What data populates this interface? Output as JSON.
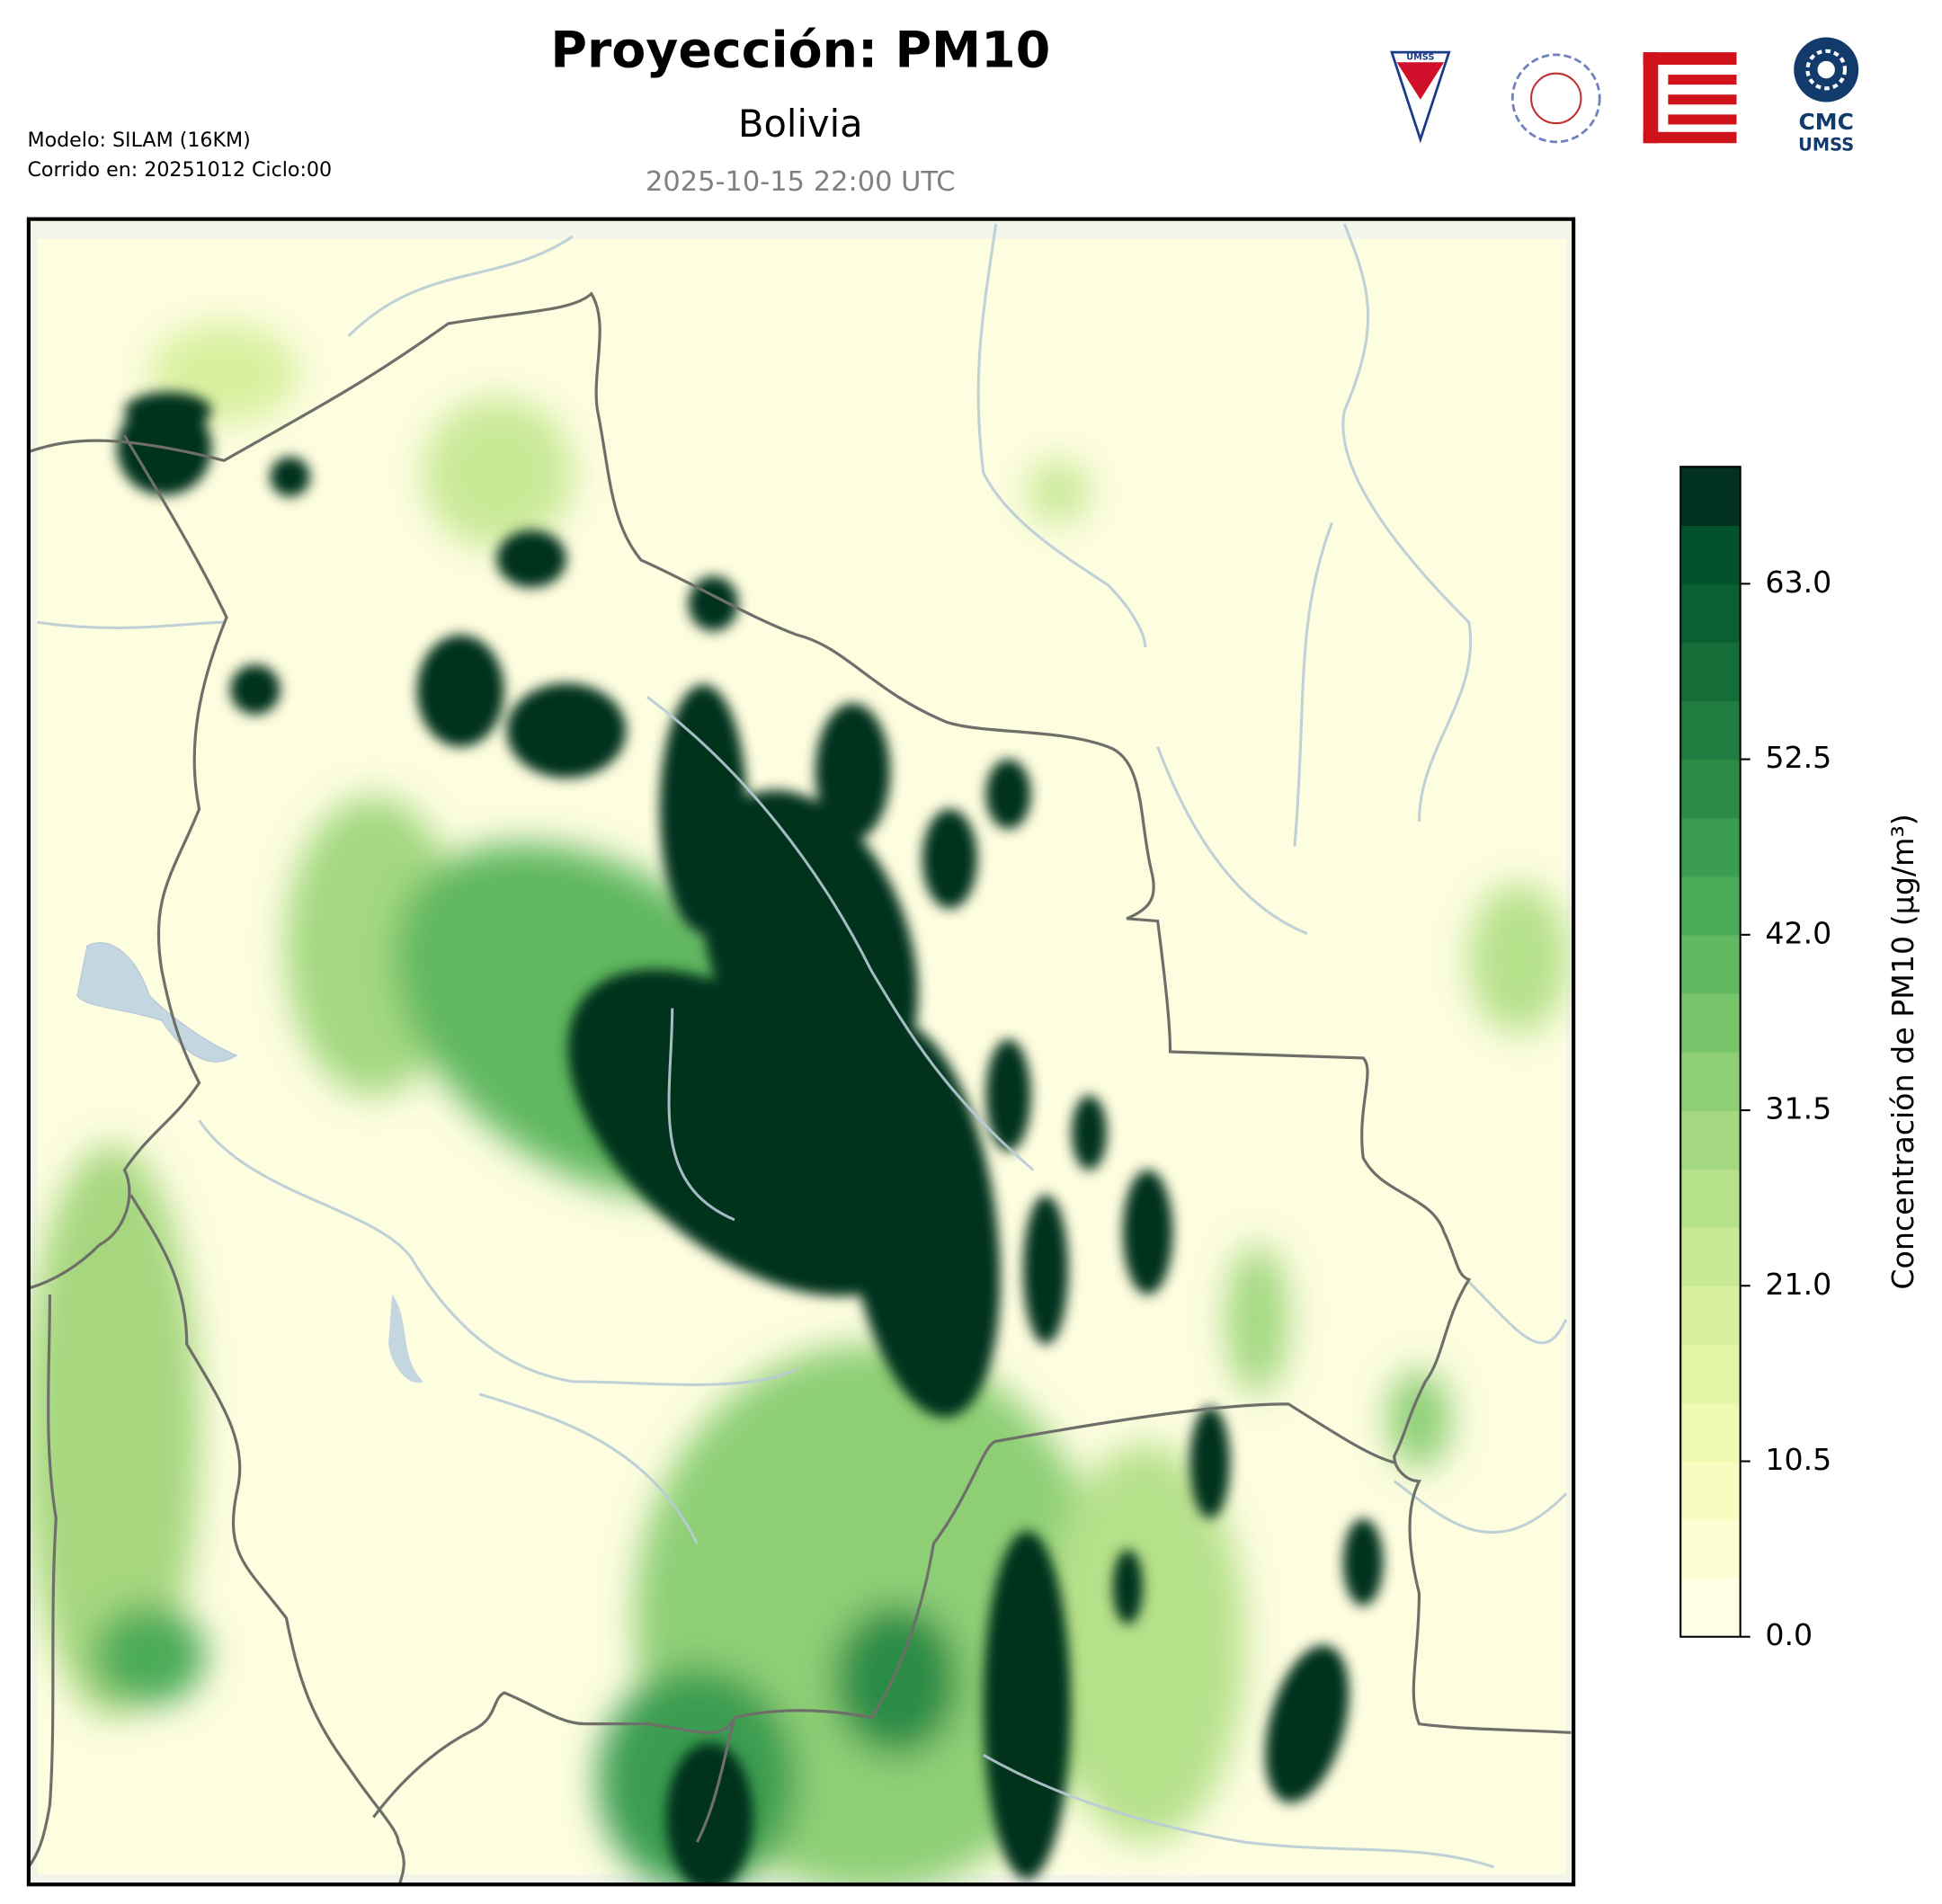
{
  "header": {
    "title": "Proyección: PM10",
    "subtitle": "Bolivia",
    "datetime": "2025-10-15 22:00 UTC",
    "model": "Modelo: SILAM (16KM)",
    "run": "Corrido en: 20251012 Ciclo:00"
  },
  "logos": {
    "umss": "UMSS",
    "cmc": "CMC",
    "cmc_sub": "UMSS"
  },
  "colorbar": {
    "label": "Concentración de PM10 (µg/m³)",
    "lim": [
      0,
      70
    ],
    "ticks": [
      {
        "value": 0,
        "label": "0.0"
      },
      {
        "value": 10.5,
        "label": "10.5"
      },
      {
        "value": 21,
        "label": "21.0"
      },
      {
        "value": 31.5,
        "label": "31.5"
      },
      {
        "value": 42,
        "label": "42.0"
      },
      {
        "value": 52.5,
        "label": "52.5"
      },
      {
        "value": 63,
        "label": "63.0"
      }
    ],
    "colors": [
      "#ffffe5",
      "#fcfed3",
      "#f7fcc0",
      "#f0f9b2",
      "#e5f5a8",
      "#d8f09f",
      "#c8e996",
      "#b6e18b",
      "#a3d880",
      "#8ecf76",
      "#78c46b",
      "#61b861",
      "#4cab59",
      "#3a9d51",
      "#2c8c46",
      "#207c3f",
      "#156d38",
      "#0b6031",
      "#03522c",
      "#00321f"
    ]
  }
}
